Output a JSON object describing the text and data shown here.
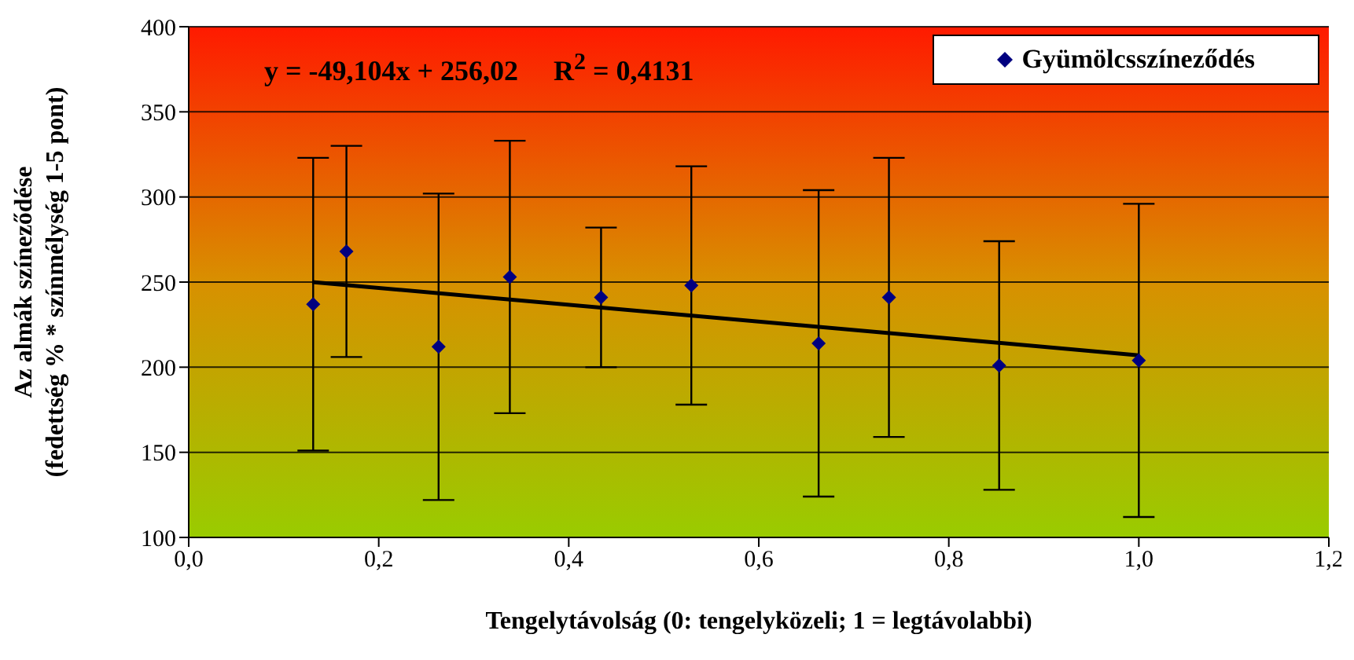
{
  "chart_data": {
    "type": "scatter",
    "xlabel": "Tengelytávolság (0: tengelyközeli; 1 = legtávolabbi)",
    "ylabel": "Az almák színeződése\n(fedettség % * színmélység 1-5 pont)",
    "annotations": [
      "y = -49,104x + 256,02     R$^{2}$ = 0,4131"
    ],
    "x": [
      0.131,
      0.166,
      0.263,
      0.338,
      0.434,
      0.529,
      0.663,
      0.737,
      0.853,
      1.0
    ],
    "series": [
      {
        "name": "Gyümölcsszíneződés",
        "color": "#000080",
        "marker": "diamond",
        "values": [
          237,
          268,
          212,
          253,
          241,
          248,
          214,
          241,
          201,
          204
        ],
        "errors": [
          86,
          62,
          90,
          80,
          41,
          70,
          90,
          82,
          73,
          92
        ]
      },
      {
        "type": "line",
        "color": "#000000",
        "marker": "none",
        "line_style": "solid",
        "x": [
          0.13,
          1.0
        ],
        "values": [
          250,
          207
        ]
      }
    ],
    "xlim": [
      0,
      1.2
    ],
    "xticks": [
      {
        "value": 0,
        "label": "0,0"
      },
      {
        "value": 0.2,
        "label": "0,2"
      },
      {
        "value": 0.4,
        "label": "0,4"
      },
      {
        "value": 0.6,
        "label": "0,6"
      },
      {
        "value": 0.8,
        "label": "0,8"
      },
      {
        "value": 1.0,
        "label": "1,0"
      },
      {
        "value": 1.2,
        "label": "1,2"
      }
    ],
    "ylim": [
      100,
      400
    ],
    "yticks": [
      100,
      150,
      200,
      250,
      300,
      350,
      400
    ],
    "grid": "y",
    "legend": "top right"
  }
}
